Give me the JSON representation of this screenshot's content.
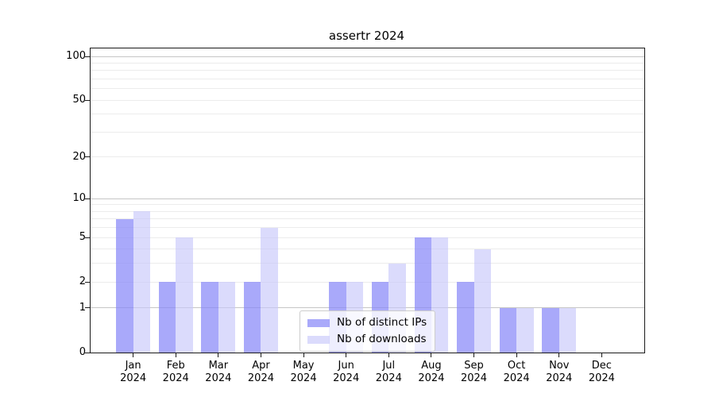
{
  "chart_data": {
    "type": "bar",
    "title": "assertr 2024",
    "scale": "log1p",
    "year": "2024",
    "categories": [
      "Jan",
      "Feb",
      "Mar",
      "Apr",
      "May",
      "Jun",
      "Jul",
      "Aug",
      "Sep",
      "Oct",
      "Nov",
      "Dec"
    ],
    "series": [
      {
        "name": "Nb of distinct IPs",
        "color": "rgba(136,136,248,0.72)",
        "values": [
          7,
          2,
          2,
          2,
          0,
          2,
          2,
          5,
          2,
          1,
          1,
          0
        ]
      },
      {
        "name": "Nb of downloads",
        "color": "rgba(200,200,250,0.65)",
        "values": [
          8,
          5,
          2,
          6,
          0,
          2,
          3,
          5,
          4,
          1,
          1,
          0
        ]
      }
    ],
    "y_ticks": [
      0,
      1,
      2,
      5,
      10,
      20,
      50,
      100
    ],
    "ylim": [
      0,
      113.4
    ],
    "grid": {
      "minor": [
        2,
        3,
        4,
        5,
        6,
        7,
        8,
        9,
        20,
        30,
        40,
        50,
        60,
        70,
        80,
        90
      ],
      "major": [
        1,
        10,
        100
      ]
    },
    "legend_position": "lower-center",
    "xlabel": "",
    "ylabel": ""
  },
  "colors": {
    "grid_minor": "#ececec",
    "grid_major": "#c6c6c6",
    "axis": "#1a1a1a",
    "background": "#ffffff"
  }
}
